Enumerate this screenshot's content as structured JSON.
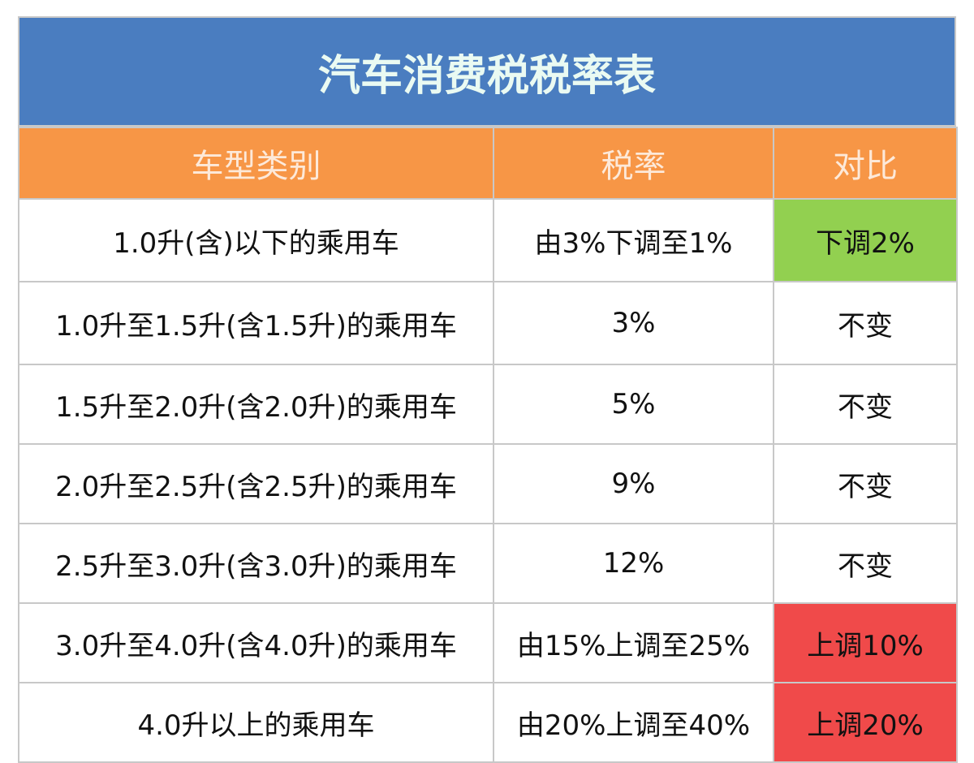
{
  "title": "汽车消费税税率表",
  "table": {
    "header": [
      "车型类别",
      "税率",
      "对比"
    ],
    "rows": [
      [
        "1.0升(含)以下的乘用车",
        "由3%下调至1%",
        "下调2%"
      ],
      [
        "1.0升至1.5升(含1.5升)的乘用车",
        "3%",
        "不变"
      ],
      [
        "1.5升至2.0升(含2.0升)的乘用车",
        "5%",
        "不变"
      ],
      [
        "2.0升至2.5升(含2.5升)的乘用车",
        "9%",
        "不变"
      ],
      [
        "2.5升至3.0升(含3.0升)的乘用车",
        "12%",
        "不变"
      ],
      [
        "3.0升至4.0升(含4.0升)的乘用车",
        "由15%上调至25%",
        "上调10%"
      ],
      [
        "4.0升以上的乘用车",
        "由20%上调至40%",
        "上调20%"
      ]
    ]
  }
}
